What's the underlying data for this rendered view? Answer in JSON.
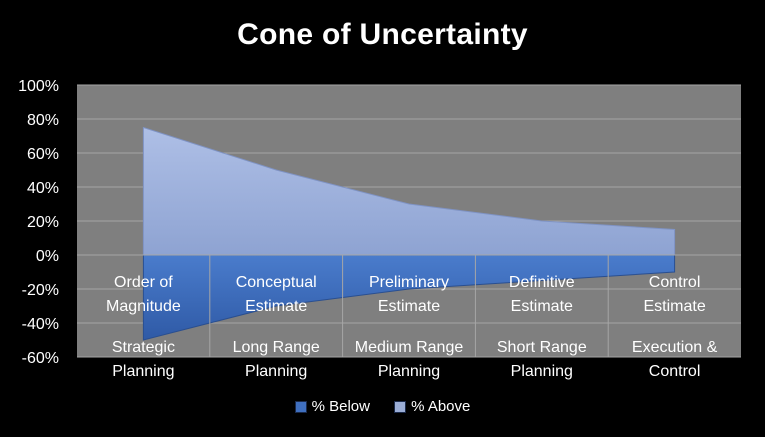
{
  "chart_data": {
    "type": "area",
    "title": "Cone of Uncertainty",
    "categories": [
      {
        "phase": "Order of Magnitude",
        "horizon": "Strategic Planning"
      },
      {
        "phase": "Conceptual Estimate",
        "horizon": "Long Range Planning"
      },
      {
        "phase": "Preliminary Estimate",
        "horizon": "Medium Range Planning"
      },
      {
        "phase": "Definitive Estimate",
        "horizon": "Short Range Planning"
      },
      {
        "phase": "Control Estimate",
        "horizon": "Execution & Control"
      }
    ],
    "category_lines": [
      {
        "phase": [
          "Order of",
          "Magnitude"
        ],
        "horizon": [
          "Strategic",
          "Planning"
        ]
      },
      {
        "phase": [
          "Conceptual",
          "Estimate"
        ],
        "horizon": [
          "Long Range",
          "Planning"
        ]
      },
      {
        "phase": [
          "Preliminary",
          "Estimate"
        ],
        "horizon": [
          "Medium Range",
          "Planning"
        ]
      },
      {
        "phase": [
          "Definitive",
          "Estimate"
        ],
        "horizon": [
          "Short Range",
          "Planning"
        ]
      },
      {
        "phase": [
          "Control",
          "Estimate"
        ],
        "horizon": [
          "Execution &",
          "Control"
        ]
      }
    ],
    "series": [
      {
        "name": "% Below",
        "values": [
          -50,
          -30,
          -20,
          -15,
          -10
        ],
        "color": "#3f6fbf"
      },
      {
        "name": "% Above",
        "values": [
          75,
          50,
          30,
          20,
          15
        ],
        "color": "#9aadd6"
      }
    ],
    "ylim": [
      -60,
      100
    ],
    "yticks": [
      100,
      80,
      60,
      40,
      20,
      0,
      -20,
      -40,
      -60
    ],
    "ytick_labels": [
      "100%",
      "80%",
      "60%",
      "40%",
      "20%",
      "0%",
      "-20%",
      "-40%",
      "-60%"
    ],
    "grid": true,
    "legend_position": "bottom",
    "plot_background": "#7f7f7f",
    "page_background": "#000000"
  }
}
